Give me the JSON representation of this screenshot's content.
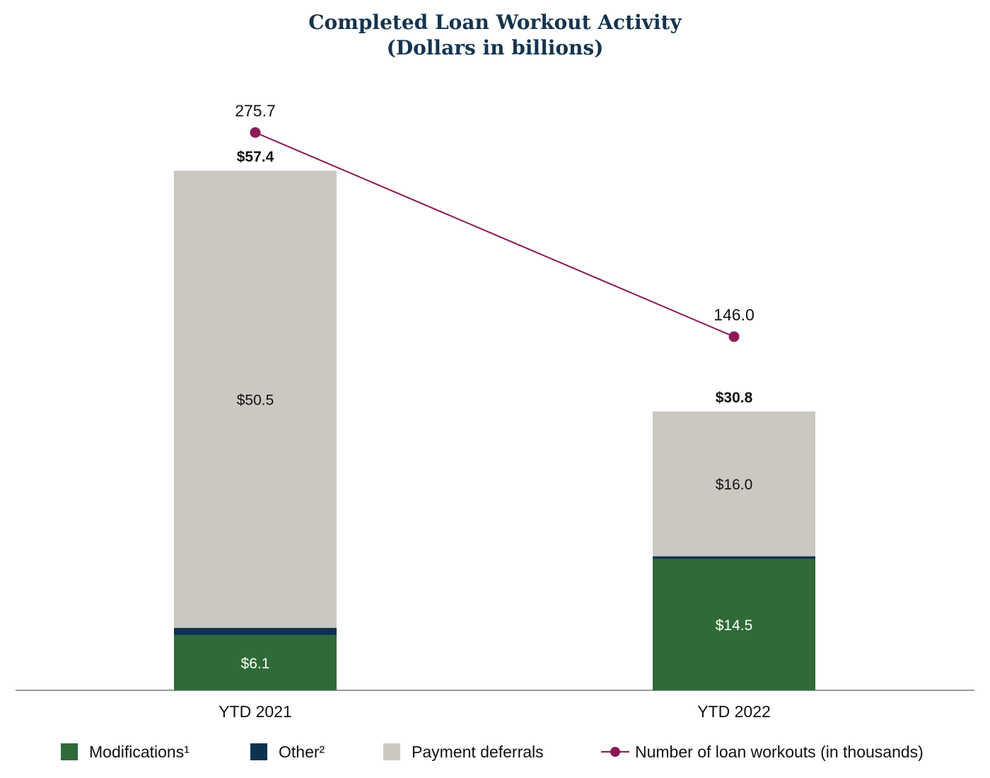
{
  "chart_data": {
    "type": "bar",
    "stacked": true,
    "title": "Completed Loan Workout Activity",
    "subtitle": "(Dollars in billions)",
    "categories": [
      "YTD 2021",
      "YTD 2022"
    ],
    "series": [
      {
        "name": "Modifications¹",
        "values": [
          6.1,
          14.5
        ],
        "labels": [
          "$6.1",
          "$14.5"
        ],
        "color": "#2e6b38"
      },
      {
        "name": "Other²",
        "values": [
          0.8,
          0.3
        ],
        "labels": [
          "",
          ""
        ],
        "color": "#0f3150"
      },
      {
        "name": "Payment deferrals",
        "values": [
          50.5,
          16.0
        ],
        "labels": [
          "$50.5",
          "$16.0"
        ],
        "color": "#cbc8c2"
      }
    ],
    "totals": [
      57.4,
      30.8
    ],
    "total_labels": [
      "$57.4",
      "$30.8"
    ],
    "line_series": {
      "name": "Number of loan workouts (in thousands)",
      "values": [
        275.7,
        146.0
      ],
      "labels": [
        "275.7",
        "146.0"
      ],
      "color": "#8a1a57"
    },
    "ylim": [
      0,
      65
    ],
    "line_ylim": [
      0,
      350
    ],
    "grid": false,
    "legend": "bottom"
  },
  "colors": {
    "title": "#14344f",
    "axis": "#999999"
  }
}
